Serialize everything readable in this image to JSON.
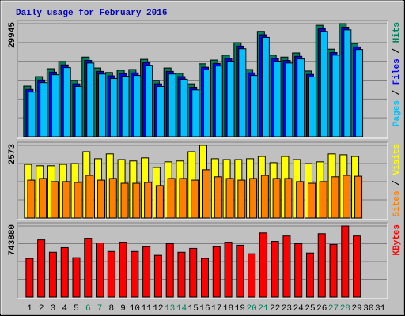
{
  "title": "Daily usage for February 2016",
  "title_color": "#0000c0",
  "legend_separator": " / ",
  "categories": [
    "1",
    "2",
    "3",
    "4",
    "5",
    "6",
    "7",
    "8",
    "9",
    "10",
    "11",
    "12",
    "13",
    "14",
    "15",
    "16",
    "17",
    "18",
    "19",
    "20",
    "21",
    "22",
    "23",
    "24",
    "25",
    "26",
    "27",
    "28",
    "29",
    "30",
    "31"
  ],
  "weekend_days": [
    "6",
    "7",
    "13",
    "14",
    "20",
    "21",
    "27",
    "28"
  ],
  "weekend_color": "#00805c",
  "weekday_color": "#000000",
  "chart_data": [
    {
      "type": "bar",
      "ylim": [
        0,
        29945
      ],
      "yticks": [
        29945
      ],
      "series": [
        {
          "name": "Hits",
          "color": "#00805c",
          "values": [
            13400,
            15900,
            18000,
            19900,
            14900,
            21100,
            18200,
            17000,
            17600,
            17800,
            20500,
            14900,
            18200,
            16800,
            14000,
            19300,
            20300,
            21600,
            24900,
            17800,
            27900,
            21600,
            21100,
            22200,
            17400,
            29500,
            23200,
            29945,
            24700,
            null,
            null
          ]
        },
        {
          "name": "Files",
          "color": "#0000ff",
          "values": [
            12500,
            15000,
            17100,
            19000,
            14000,
            20200,
            17300,
            16100,
            16700,
            16900,
            19600,
            14000,
            17300,
            15900,
            13100,
            18400,
            19400,
            20700,
            24000,
            16900,
            27000,
            20700,
            20200,
            21300,
            16500,
            28600,
            22300,
            29000,
            23800,
            null,
            null
          ]
        },
        {
          "name": "Pages",
          "color": "#00c0ff",
          "values": [
            11800,
            14300,
            16400,
            18300,
            13300,
            19500,
            16600,
            15400,
            16000,
            16200,
            18900,
            13300,
            16600,
            15200,
            12400,
            17700,
            18700,
            20000,
            23300,
            16200,
            26300,
            20000,
            19500,
            20600,
            15800,
            27900,
            21600,
            28300,
            23100,
            null,
            null
          ]
        }
      ]
    },
    {
      "type": "bar",
      "ylim": [
        0,
        2573
      ],
      "yticks": [
        2573
      ],
      "series": [
        {
          "name": "Visits",
          "color": "#ffff00",
          "values": [
            1900,
            1850,
            1850,
            1900,
            1930,
            2350,
            2100,
            2270,
            2070,
            2020,
            2130,
            1790,
            1990,
            2020,
            2350,
            2573,
            2100,
            2070,
            2070,
            2100,
            2180,
            1960,
            2180,
            2070,
            1930,
            1990,
            2270,
            2240,
            2180,
            null,
            null
          ]
        },
        {
          "name": "Sites",
          "color": "#ff8000",
          "values": [
            1340,
            1400,
            1290,
            1290,
            1260,
            1510,
            1340,
            1400,
            1230,
            1230,
            1260,
            1150,
            1400,
            1400,
            1340,
            1710,
            1460,
            1400,
            1340,
            1400,
            1510,
            1400,
            1400,
            1290,
            1230,
            1290,
            1460,
            1510,
            1480,
            null,
            null
          ]
        }
      ]
    },
    {
      "type": "bar",
      "ylim": [
        0,
        743880
      ],
      "yticks": [
        743880
      ],
      "series": [
        {
          "name": "KBytes",
          "color": "#ff0000",
          "values": [
            404000,
            598000,
            469000,
            517000,
            412000,
            615000,
            566000,
            477000,
            574000,
            477000,
            526000,
            437000,
            558000,
            469000,
            509000,
            404000,
            526000,
            574000,
            542000,
            453000,
            671000,
            582000,
            639000,
            558000,
            461000,
            663000,
            550000,
            743880,
            639000,
            null,
            null
          ]
        }
      ]
    }
  ]
}
